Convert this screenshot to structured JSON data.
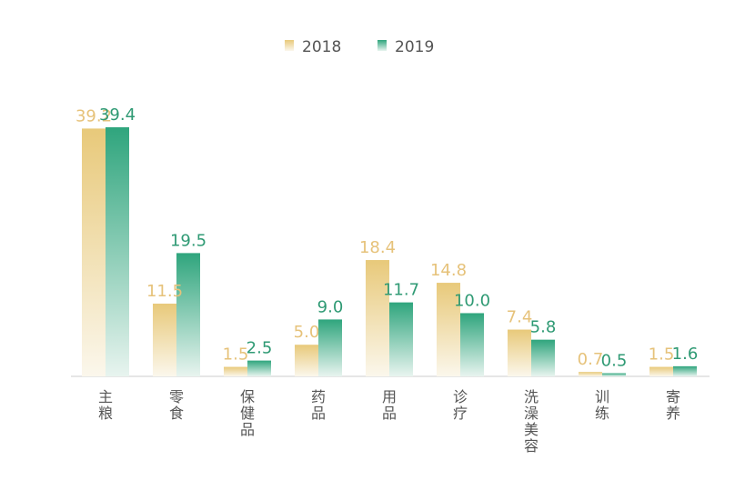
{
  "chart_data": {
    "type": "bar",
    "categories": [
      "主粮",
      "零食",
      "保健品",
      "药品",
      "用品",
      "诊疗",
      "洗澡美容",
      "训练",
      "寄养"
    ],
    "series": [
      {
        "name": "2018",
        "values": [
          39.2,
          11.5,
          1.5,
          5.0,
          18.4,
          14.8,
          7.4,
          0.7,
          1.5
        ],
        "labels": [
          "39.2",
          "11.5",
          "1.5",
          "5.0",
          "18.4",
          "14.8",
          "7.4",
          "0.7",
          "1.5"
        ],
        "color": "#e8c97a",
        "label_color": "#e6c27a"
      },
      {
        "name": "2019",
        "values": [
          39.4,
          19.5,
          2.5,
          9.0,
          11.7,
          10.0,
          5.8,
          0.5,
          1.6
        ],
        "labels": [
          "39.4",
          "19.5",
          "2.5",
          "9.0",
          "11.7",
          "10.0",
          "5.8",
          "0.5",
          "1.6"
        ],
        "color": "#2fa57d",
        "label_color": "#2f9a74"
      }
    ],
    "ylim": [
      0,
      40
    ],
    "grid": false,
    "legend_position": "top-center"
  }
}
